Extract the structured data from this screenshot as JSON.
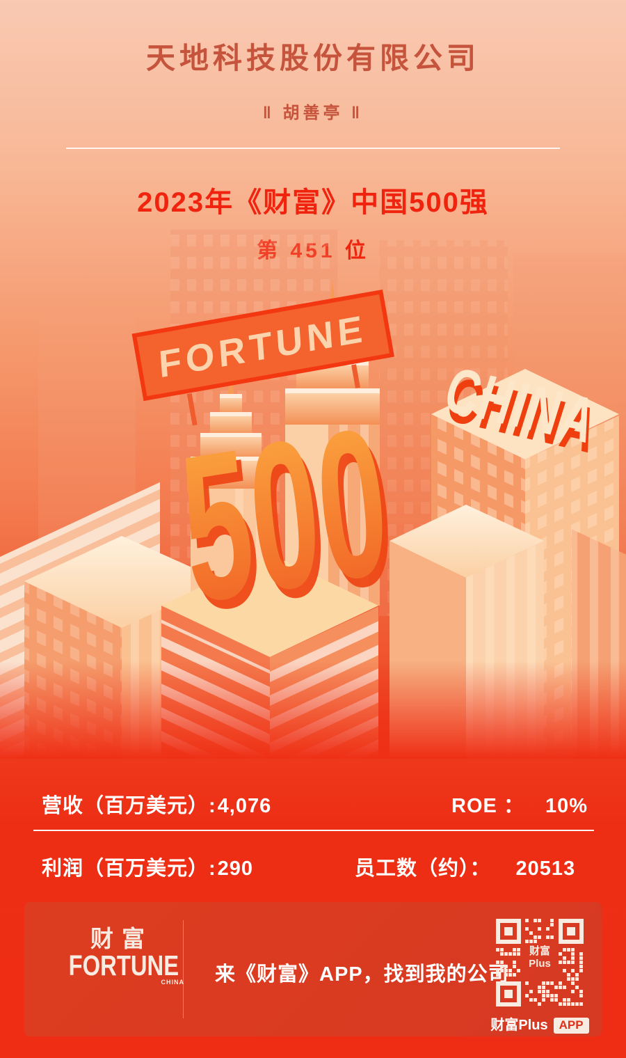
{
  "header": {
    "company_name": "天地科技股份有限公司",
    "person_name": "‖ 胡善亭 ‖",
    "ranking_title": "2023年《财富》中国500强",
    "ranking_position": "第 451 位"
  },
  "illustration": {
    "billboard_text": "FORTUNE",
    "rank_number": "500",
    "china_text": "CHINA"
  },
  "stats": {
    "revenue_label": "营收（百万美元）:",
    "revenue_value": "4,076",
    "roe_label": "ROE ：",
    "roe_value": "10%",
    "profit_label": "利润（百万美元）:",
    "profit_value": "290",
    "employees_label": "员工数（约）：",
    "employees_value": "20513"
  },
  "footer": {
    "logo_cn": "财富",
    "logo_en": "FORTUNE",
    "logo_sub": "CHINA",
    "slogan": "来《财富》APP，找到我的公司",
    "qr_center_line1": "财富",
    "qr_center_line2": "Plus",
    "qr_caption": "财富Plus",
    "qr_badge": "APP"
  },
  "colors": {
    "background_top": "#f9c9b2",
    "background_bottom": "#ee2d14",
    "title_terracotta": "#c6543c",
    "accent_red": "#f0230f",
    "cream": "#f8ece2",
    "footer_bar": "#d93a20"
  }
}
